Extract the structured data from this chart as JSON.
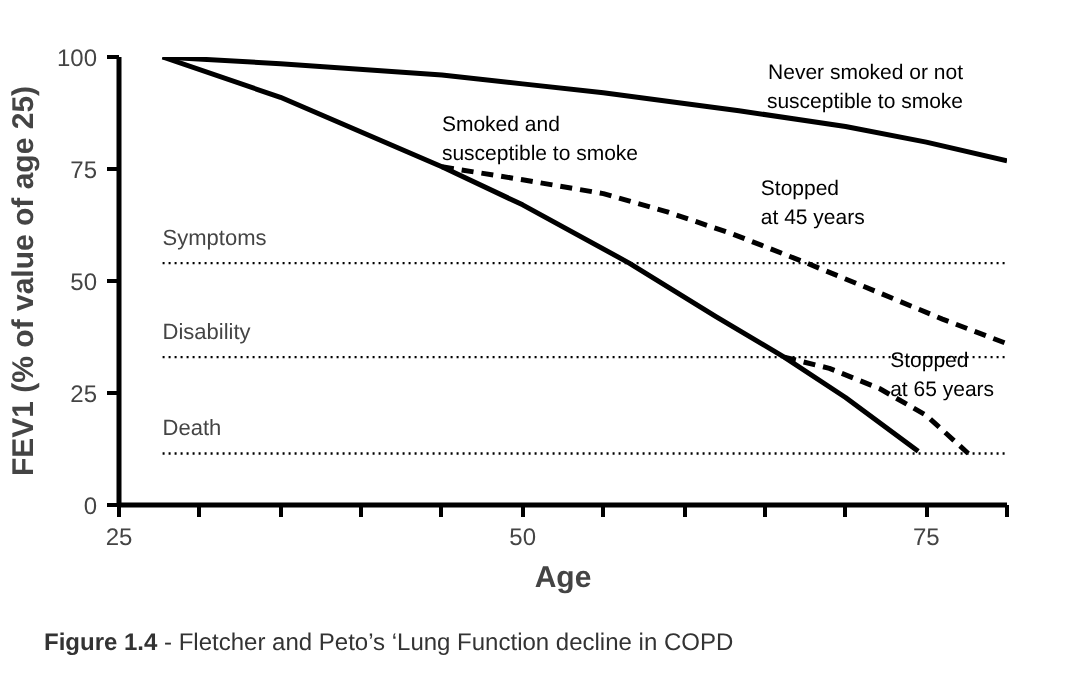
{
  "chart_data": {
    "type": "line",
    "xlabel": "Age",
    "ylabel": "FEV1 (% of value of age 25)",
    "xlim": [
      25,
      80
    ],
    "ylim": [
      0,
      100
    ],
    "xticks": [
      25,
      {
        "value": 30,
        "label": null
      },
      {
        "value": 35,
        "label": null
      },
      {
        "value": 40,
        "label": null
      },
      {
        "value": 45,
        "label": null
      },
      50,
      {
        "value": 55,
        "label": null
      },
      {
        "value": 60,
        "label": null
      },
      {
        "value": 65,
        "label": null
      },
      {
        "value": 70,
        "label": null
      },
      75,
      {
        "value": 80,
        "label": null
      }
    ],
    "yticks": [
      0,
      25,
      50,
      75,
      100
    ],
    "grid": false,
    "legend": false,
    "series": [
      {
        "name": "Never smoked or not\nsusceptible to smoke",
        "color": "#000000",
        "line_style": "solid",
        "x": [
          27.7,
          35,
          45,
          50,
          55,
          63.4,
          70,
          75,
          80
        ],
        "values": [
          100,
          98.5,
          96,
          94,
          92,
          88,
          84.5,
          81,
          76.8
        ]
      },
      {
        "name": "Smoked and\nsusceptible to smoke",
        "color": "#000000",
        "line_style": "solid",
        "x": [
          27.7,
          35,
          45,
          50,
          56.6,
          62,
          66.2,
          70,
          74.5
        ],
        "values": [
          100,
          91,
          75.5,
          67,
          54,
          42,
          33,
          24,
          12
        ]
      },
      {
        "name": "Stopped\nat 45 years",
        "color": "#000000",
        "line_style": "dashed",
        "x": [
          45,
          50,
          55,
          58.9,
          63,
          67.6,
          72,
          76,
          80
        ],
        "values": [
          75.5,
          72.6,
          69.5,
          65.5,
          60.5,
          54,
          47.5,
          41.5,
          36
        ]
      },
      {
        "name": "Stopped\nat 65 years",
        "color": "#000000",
        "line_style": "dashed",
        "x": [
          66.2,
          69,
          72.1,
          75,
          77.6
        ],
        "values": [
          33,
          30.5,
          26,
          20,
          11.5
        ]
      }
    ],
    "ref_lines": [
      {
        "axis": "y",
        "value": 54,
        "label": "Symptoms",
        "line_style": "dotted",
        "color": "#000000"
      },
      {
        "axis": "y",
        "value": 33,
        "label": "Disability",
        "line_style": "dotted",
        "color": "#000000"
      },
      {
        "axis": "y",
        "value": 11.5,
        "label": "Death",
        "line_style": "dotted",
        "color": "#000000"
      }
    ],
    "annotations": [
      "Figure 1.4 - Fletcher and Peto’s ‘Lung Function decline in COPD"
    ]
  }
}
